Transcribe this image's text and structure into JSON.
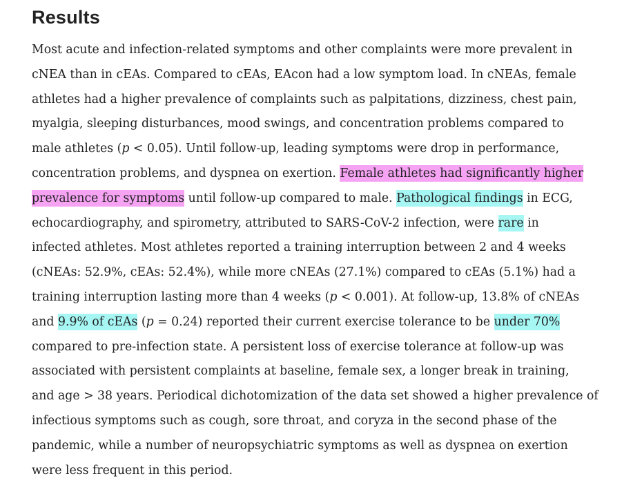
{
  "section": {
    "heading": "Results"
  },
  "text": {
    "l1": "Most acute and infection-related symptoms and other complaints were more prevalent in",
    "l2": "cNEA than in cEAs. Compared to cEAs, EAcon had a low symptom load. In cNEAs, female",
    "l3": "athletes had a higher prevalence of complaints such as palpitations, dizziness, chest pain,",
    "l4": "myalgia, sleeping disturbances, mood swings, and concentration problems compared to",
    "l5_a": "male athletes (",
    "l5_p": "p",
    "l5_b": " < 0.05). Until follow-up, leading symptoms were drop in performance,",
    "l6_a": "concentration problems, and dyspnea on exertion. ",
    "l6_hl": "Female athletes had significantly higher",
    "l7_hl": "prevalence for symptoms",
    "l7_a": " until follow-up compared to male. ",
    "l7_hl2": "Pathological findings",
    "l7_b": " in ECG,",
    "l8_a": "echocardiography, and spirometry, attributed to SARS-CoV-2 infection, were ",
    "l8_hl": "rare",
    "l8_b": " in",
    "l9": "infected athletes. Most athletes reported a training interruption between 2 and 4 weeks",
    "l10": "(cNEAs: 52.9%, cEAs: 52.4%), while more cNEAs (27.1%) compared to cEAs (5.1%) had a",
    "l11_a": "training interruption lasting more than 4 weeks (",
    "l11_p": "p",
    "l11_b": " < 0.001). At follow-up, 13.8% of cNEAs",
    "l12_a": "and ",
    "l12_hl": "9.9% of cEAs",
    "l12_b": " (",
    "l12_p": "p",
    "l12_c": " = 0.24) reported their current exercise tolerance to be ",
    "l12_hl2": "under 70%",
    "l13": "compared to pre-infection state. A persistent loss of exercise tolerance at follow-up was",
    "l14": "associated with persistent complaints at baseline, female sex, a longer break in training,",
    "l15": "and age > 38 years. Periodical dichotomization of the data set showed a higher prevalence of",
    "l16": "infectious symptoms such as cough, sore throat, and coryza in the second phase of the",
    "l17": "pandemic, while a number of neuropsychiatric symptoms as well as dyspnea on exertion",
    "l18": "were less frequent in this period."
  },
  "highlight_colors": {
    "pink": "#f6a3f4",
    "cyan": "#a6f6f4"
  }
}
